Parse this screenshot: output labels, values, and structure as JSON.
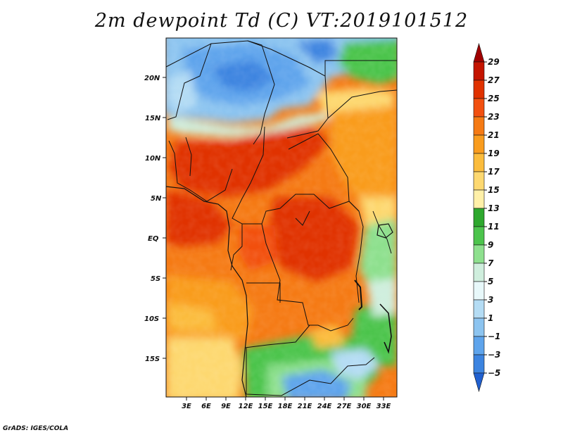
{
  "title": "2m dewpoint Td (C) VT:2019101512",
  "credit": "GrADS: IGES/COLA",
  "map": {
    "lat_labels": [
      "20N",
      "15N",
      "10N",
      "5N",
      "EQ",
      "5S",
      "10S",
      "15S"
    ],
    "lon_labels": [
      "3E",
      "6E",
      "9E",
      "12E",
      "15E",
      "18E",
      "21E",
      "24E",
      "27E",
      "30E",
      "33E"
    ]
  },
  "colorbar": {
    "labels": [
      "29",
      "27",
      "25",
      "23",
      "21",
      "19",
      "17",
      "15",
      "13",
      "11",
      "9",
      "7",
      "5",
      "3",
      "1",
      "-1",
      "-3",
      "-5"
    ],
    "colors": [
      "#a00000",
      "#c41400",
      "#e03200",
      "#f25010",
      "#f57a14",
      "#f99c1e",
      "#fbbc3c",
      "#fdd870",
      "#fff0a8",
      "#2ea82e",
      "#4cc44c",
      "#8ee08e",
      "#cfeedd",
      "#e8f8fa",
      "#b4dcf4",
      "#8cc4f0",
      "#5ea4ec",
      "#3c84e0",
      "#2060d0"
    ]
  }
}
